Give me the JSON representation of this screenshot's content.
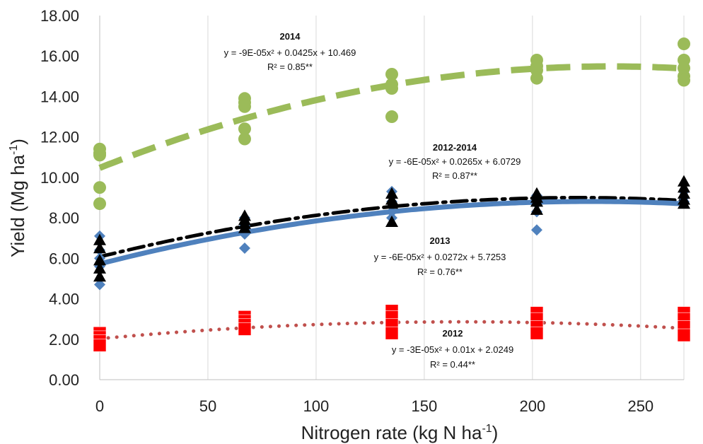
{
  "chart_data": {
    "type": "scatter",
    "xlabel": "Nitrogen rate (kg N ha",
    "xlabel_sup": "-1",
    "xlabel_end": ")",
    "ylabel": "Yield (Mg ha",
    "ylabel_sup": "-1",
    "ylabel_end": ")",
    "xlim": [
      0,
      270
    ],
    "ylim": [
      0,
      18
    ],
    "x_ticks": [
      "0",
      "50",
      "100",
      "150",
      "200",
      "250"
    ],
    "y_ticks": [
      "0.00",
      "2.00",
      "4.00",
      "6.00",
      "8.00",
      "10.00",
      "12.00",
      "14.00",
      "16.00",
      "18.00"
    ],
    "grid": "vertical",
    "series": [
      {
        "name": "2014",
        "marker": "circle",
        "color": "#9bbb59",
        "points": [
          [
            0,
            11.4
          ],
          [
            0,
            11.2
          ],
          [
            0,
            11.1
          ],
          [
            0,
            9.5
          ],
          [
            0,
            8.7
          ],
          [
            67,
            13.9
          ],
          [
            67,
            13.7
          ],
          [
            67,
            13.5
          ],
          [
            67,
            12.4
          ],
          [
            67,
            11.9
          ],
          [
            135,
            15.1
          ],
          [
            135,
            14.6
          ],
          [
            135,
            14.4
          ],
          [
            135,
            13.0
          ],
          [
            202,
            15.8
          ],
          [
            202,
            15.5
          ],
          [
            202,
            15.3
          ],
          [
            202,
            14.9
          ],
          [
            270,
            16.6
          ],
          [
            270,
            15.8
          ],
          [
            270,
            15.4
          ],
          [
            270,
            15.0
          ],
          [
            270,
            14.8
          ]
        ],
        "trend": {
          "a": -9e-05,
          "b": 0.0425,
          "c": 10.469,
          "style": "long-dash"
        },
        "label": {
          "title": "2014",
          "equation": "y = -9E-05x² + 0.0425x + 10.469",
          "r2": "R² = 0.85**"
        }
      },
      {
        "name": "2012-2014",
        "marker": "triangle",
        "color": "#000000",
        "points": [
          [
            0,
            6.9
          ],
          [
            0,
            6.5
          ],
          [
            0,
            5.9
          ],
          [
            0,
            5.5
          ],
          [
            0,
            5.1
          ],
          [
            67,
            8.1
          ],
          [
            67,
            7.9
          ],
          [
            67,
            7.7
          ],
          [
            67,
            7.5
          ],
          [
            135,
            9.2
          ],
          [
            135,
            8.9
          ],
          [
            135,
            8.7
          ],
          [
            135,
            7.8
          ],
          [
            202,
            9.2
          ],
          [
            202,
            9.0
          ],
          [
            202,
            8.8
          ],
          [
            202,
            8.4
          ],
          [
            270,
            9.8
          ],
          [
            270,
            9.5
          ],
          [
            270,
            9.2
          ],
          [
            270,
            8.9
          ],
          [
            270,
            8.7
          ]
        ],
        "trend": {
          "a": -6e-05,
          "b": 0.0265,
          "c": 6.0729,
          "style": "dash-dot"
        },
        "label": {
          "title": "2012-2014",
          "equation": "y = -6E-05x² + 0.0265x + 6.0729",
          "r2": "R² = 0.87**"
        }
      },
      {
        "name": "2013",
        "marker": "diamond",
        "color": "#4f81bd",
        "points": [
          [
            0,
            7.1
          ],
          [
            0,
            6.4
          ],
          [
            0,
            6.0
          ],
          [
            0,
            5.6
          ],
          [
            0,
            4.7
          ],
          [
            67,
            8.0
          ],
          [
            67,
            7.6
          ],
          [
            67,
            7.2
          ],
          [
            67,
            6.5
          ],
          [
            135,
            9.3
          ],
          [
            135,
            8.8
          ],
          [
            135,
            8.3
          ],
          [
            135,
            8.0
          ],
          [
            202,
            9.1
          ],
          [
            202,
            8.7
          ],
          [
            202,
            8.3
          ],
          [
            202,
            7.4
          ],
          [
            270,
            9.3
          ],
          [
            270,
            9.0
          ],
          [
            270,
            8.8
          ]
        ],
        "trend": {
          "a": -6e-05,
          "b": 0.0272,
          "c": 5.7253,
          "style": "solid"
        },
        "label": {
          "title": "2013",
          "equation": "y = -6E-05x² + 0.0272x + 5.7253",
          "r2": "R² = 0.76**"
        }
      },
      {
        "name": "2012",
        "marker": "square",
        "color": "#ff0000",
        "points": [
          [
            0,
            2.3
          ],
          [
            0,
            2.1
          ],
          [
            0,
            1.9
          ],
          [
            0,
            1.7
          ],
          [
            67,
            3.1
          ],
          [
            67,
            2.9
          ],
          [
            67,
            2.7
          ],
          [
            67,
            2.5
          ],
          [
            135,
            3.4
          ],
          [
            135,
            3.1
          ],
          [
            135,
            2.7
          ],
          [
            135,
            2.3
          ],
          [
            202,
            3.3
          ],
          [
            202,
            3.0
          ],
          [
            202,
            2.6
          ],
          [
            202,
            2.3
          ],
          [
            270,
            3.3
          ],
          [
            270,
            3.0
          ],
          [
            270,
            2.6
          ],
          [
            270,
            2.2
          ]
        ],
        "trend": {
          "a": -3e-05,
          "b": 0.01,
          "c": 2.0249,
          "style": "dotted",
          "color": "#c0504d"
        },
        "label": {
          "title": "2012",
          "equation": "y = -3E-05x² + 0.01x + 2.0249",
          "r2": "R² = 0.44**"
        }
      }
    ]
  }
}
